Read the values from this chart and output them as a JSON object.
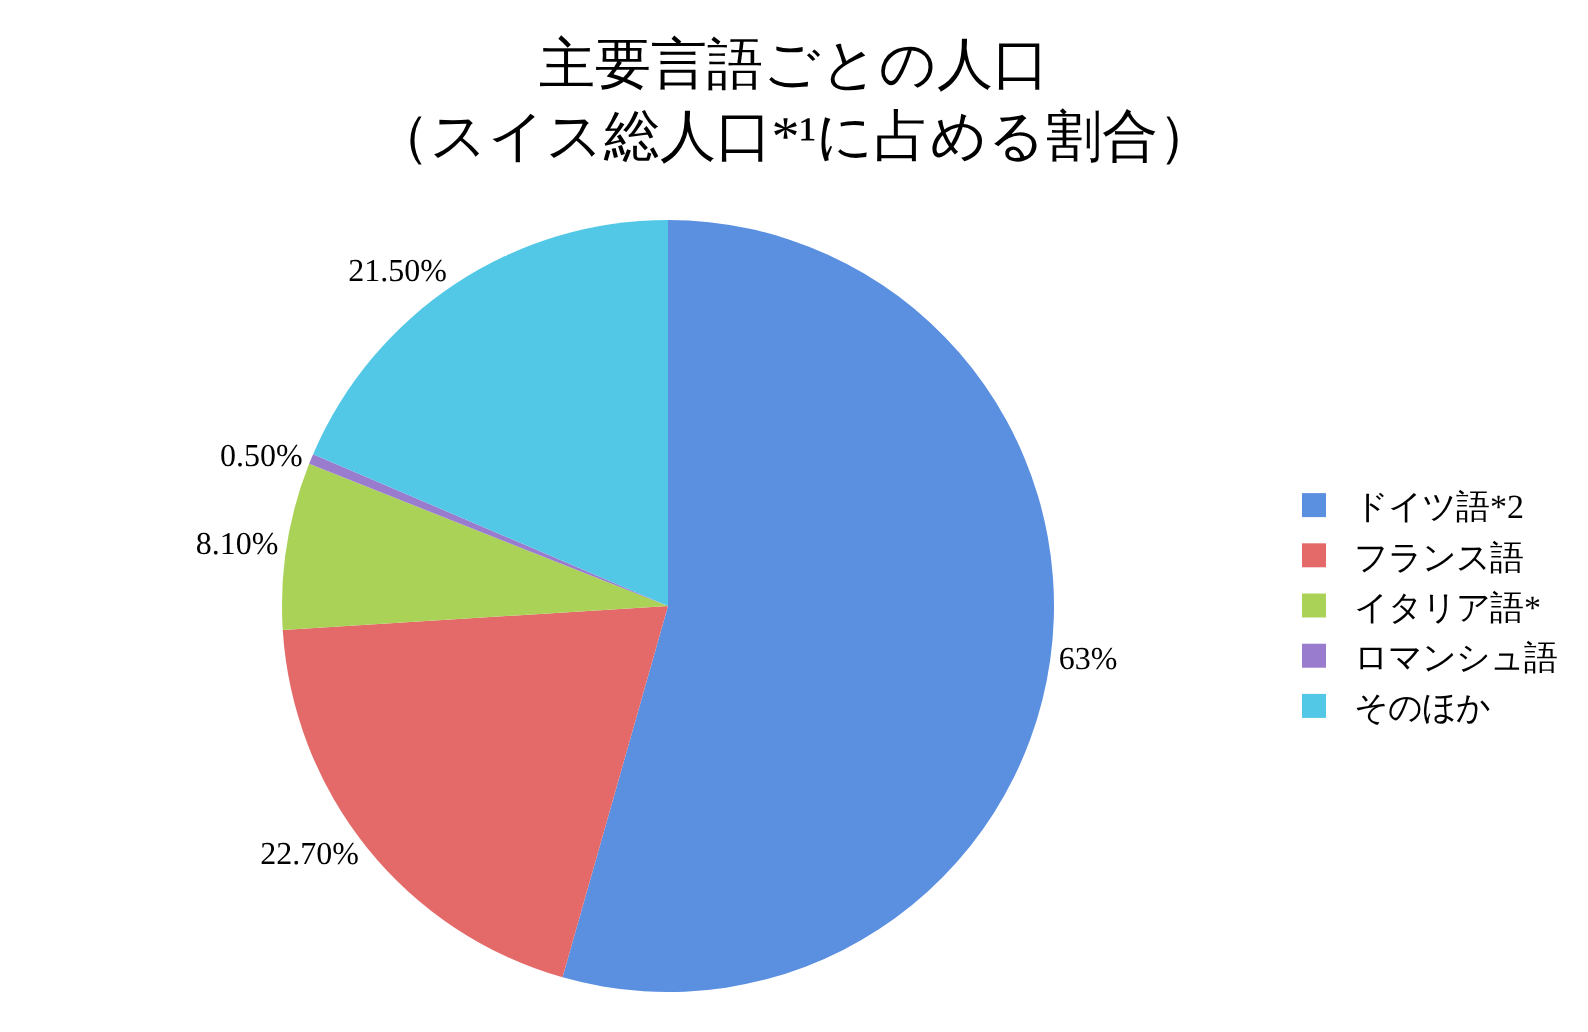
{
  "chart_data": {
    "type": "pie",
    "title": "主要言語ごとの人口",
    "subtitle": "（スイス総人口*¹に占める割合）",
    "categories": [
      "ドイツ語*2",
      "フランス語",
      "イタリア語*",
      "ロマンシュ語",
      "そのほか"
    ],
    "values": [
      63,
      22.7,
      8.1,
      0.5,
      21.5
    ],
    "value_labels": [
      "63%",
      "22.70%",
      "8.10%",
      "0.50%",
      "21.50%"
    ],
    "colors": [
      "#5b8fe0",
      "#e46a6a",
      "#a9d257",
      "#9a7ccf",
      "#52c8e6"
    ],
    "legend": "right"
  }
}
